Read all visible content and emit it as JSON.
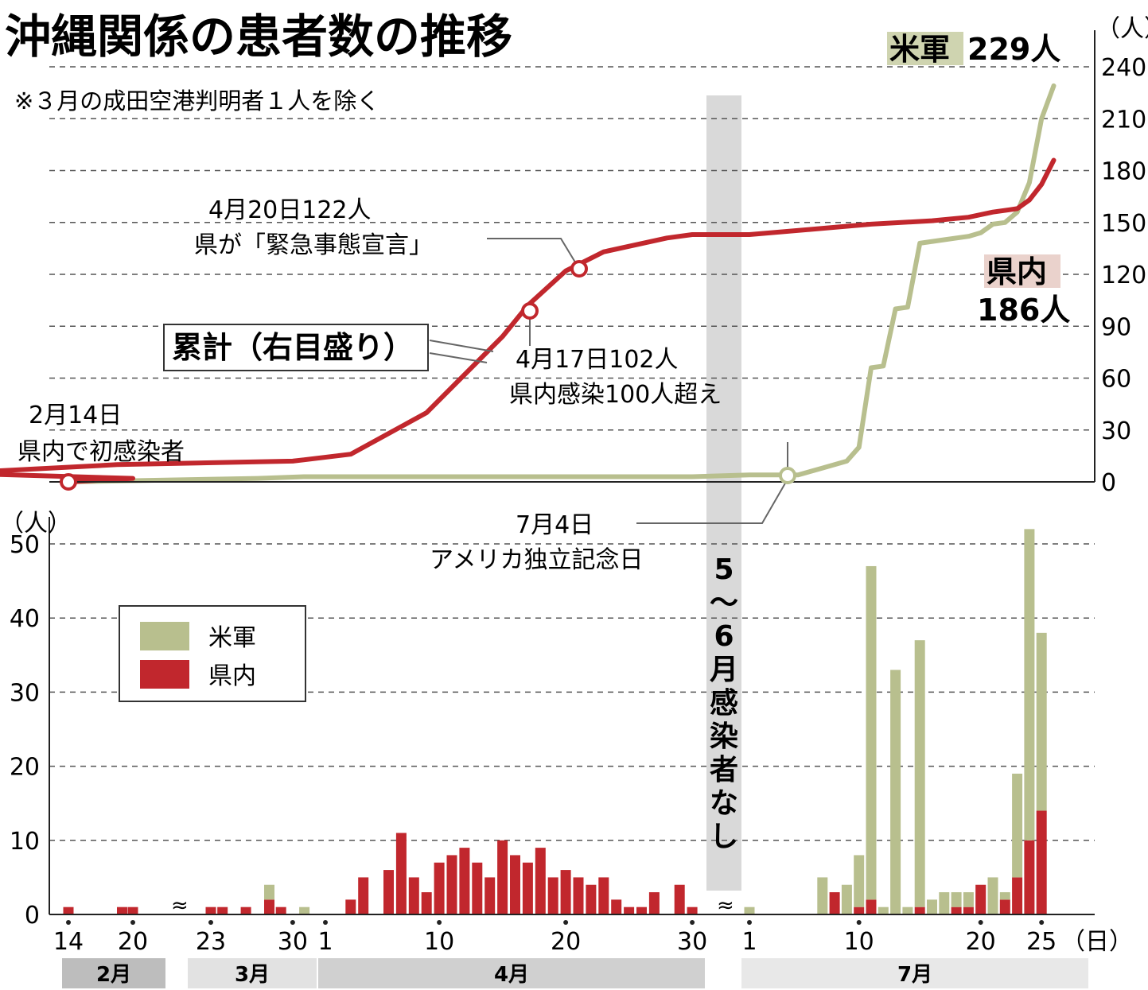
{
  "title": "沖縄関係の患者数の推移",
  "note": "※３月の成田空港判明者１人を除く",
  "colors": {
    "us_military": "#b8bf8e",
    "prefecture": "#c1272d",
    "gap_band": "#d9d9d9"
  },
  "gap_label": [
    "5",
    "〜",
    "6",
    "月",
    "感",
    "染",
    "者",
    "な",
    "し"
  ],
  "unit_person": "（人）",
  "unit_day": "（日）",
  "legend": {
    "us_military": "米軍",
    "prefecture": "県内"
  },
  "cumulative_box": "累計（右目盛り）",
  "end_labels": {
    "us_name": "米軍",
    "us_value": "229人",
    "pref_name": "県内",
    "pref_value": "186人"
  },
  "annotations": {
    "feb14_line1": "2月14日",
    "feb14_line2": "県内で初感染者",
    "apr17_line1": "4月17日102人",
    "apr17_line2": "県内感染100人超え",
    "apr20_line1": "4月20日122人",
    "apr20_line2": "県が「緊急事態宣言」",
    "jul4_line1": "7月4日",
    "jul4_line2": "アメリカ独立記念日"
  },
  "months": [
    "2月",
    "3月",
    "4月",
    "7月"
  ],
  "chart_data": [
    {
      "type": "line",
      "title": "",
      "ylabel": "（人）",
      "y_axis": "right",
      "ylim": [
        0,
        240
      ],
      "yticks": [
        0,
        30,
        60,
        90,
        120,
        150,
        180,
        210,
        240
      ],
      "grid": "dashed",
      "series": [
        {
          "name": "県内",
          "color": "#c1272d",
          "points": [
            [
              "2/14",
              0
            ],
            [
              "2/20",
              2
            ],
            [
              "3/1",
              5
            ],
            [
              "3/15",
              10
            ],
            [
              "3/30",
              12
            ],
            [
              "4/3",
              16
            ],
            [
              "4/6",
              28
            ],
            [
              "4/9",
              40
            ],
            [
              "4/12",
              62
            ],
            [
              "4/15",
              84
            ],
            [
              "4/17",
              102
            ],
            [
              "4/20",
              122
            ],
            [
              "4/23",
              133
            ],
            [
              "4/28",
              141
            ],
            [
              "4/30",
              143
            ],
            [
              "7/1",
              143
            ],
            [
              "7/6",
              146
            ],
            [
              "7/11",
              149
            ],
            [
              "7/16",
              151
            ],
            [
              "7/19",
              153
            ],
            [
              "7/21",
              156
            ],
            [
              "7/23",
              158
            ],
            [
              "7/24",
              163
            ],
            [
              "7/25",
              172
            ],
            [
              "7/26",
              186
            ]
          ]
        },
        {
          "name": "米軍",
          "color": "#b8bf8e",
          "points": [
            [
              "2/14",
              0
            ],
            [
              "3/27",
              2
            ],
            [
              "3/31",
              3
            ],
            [
              "4/30",
              3
            ],
            [
              "7/1",
              4
            ],
            [
              "7/5",
              4
            ],
            [
              "7/7",
              8
            ],
            [
              "7/9",
              12
            ],
            [
              "7/10",
              20
            ],
            [
              "7/11",
              66
            ],
            [
              "7/12",
              67
            ],
            [
              "7/13",
              100
            ],
            [
              "7/14",
              101
            ],
            [
              "7/15",
              138
            ],
            [
              "7/17",
              140
            ],
            [
              "7/19",
              142
            ],
            [
              "7/20",
              144
            ],
            [
              "7/21",
              149
            ],
            [
              "7/22",
              150
            ],
            [
              "7/23",
              156
            ],
            [
              "7/24",
              173
            ],
            [
              "7/25",
              210
            ],
            [
              "7/26",
              229
            ]
          ]
        }
      ]
    },
    {
      "type": "bar",
      "stacked": true,
      "title": "",
      "ylabel": "（人）",
      "xlabel": "（日）",
      "ylim": [
        0,
        50
      ],
      "yticks": [
        0,
        10,
        20,
        30,
        40,
        50
      ],
      "xtick_labels": [
        "14",
        "20",
        "23",
        "30",
        "1",
        "10",
        "20",
        "30",
        "1",
        "10",
        "20",
        "25"
      ],
      "x_axis_breaks": [
        "2月/3月",
        "4月/7月"
      ],
      "series_names": [
        "米軍",
        "県内"
      ],
      "bars": [
        {
          "date": "2/14",
          "us": 0,
          "pref": 1
        },
        {
          "date": "2/19",
          "us": 0,
          "pref": 1
        },
        {
          "date": "2/20",
          "us": 0,
          "pref": 1
        },
        {
          "date": "3/23",
          "us": 0,
          "pref": 1
        },
        {
          "date": "3/24",
          "us": 0,
          "pref": 1
        },
        {
          "date": "3/26",
          "us": 0,
          "pref": 1
        },
        {
          "date": "3/28",
          "us": 2,
          "pref": 2
        },
        {
          "date": "3/29",
          "us": 0,
          "pref": 1
        },
        {
          "date": "3/31",
          "us": 1,
          "pref": 0
        },
        {
          "date": "4/3",
          "us": 0,
          "pref": 2
        },
        {
          "date": "4/4",
          "us": 0,
          "pref": 5
        },
        {
          "date": "4/6",
          "us": 0,
          "pref": 6
        },
        {
          "date": "4/7",
          "us": 0,
          "pref": 11
        },
        {
          "date": "4/8",
          "us": 0,
          "pref": 5
        },
        {
          "date": "4/9",
          "us": 0,
          "pref": 3
        },
        {
          "date": "4/10",
          "us": 0,
          "pref": 7
        },
        {
          "date": "4/11",
          "us": 0,
          "pref": 8
        },
        {
          "date": "4/12",
          "us": 0,
          "pref": 9
        },
        {
          "date": "4/13",
          "us": 0,
          "pref": 7
        },
        {
          "date": "4/14",
          "us": 0,
          "pref": 5
        },
        {
          "date": "4/15",
          "us": 0,
          "pref": 10
        },
        {
          "date": "4/16",
          "us": 0,
          "pref": 8
        },
        {
          "date": "4/17",
          "us": 0,
          "pref": 7
        },
        {
          "date": "4/18",
          "us": 0,
          "pref": 9
        },
        {
          "date": "4/19",
          "us": 0,
          "pref": 5
        },
        {
          "date": "4/20",
          "us": 0,
          "pref": 6
        },
        {
          "date": "4/21",
          "us": 0,
          "pref": 5
        },
        {
          "date": "4/22",
          "us": 0,
          "pref": 4
        },
        {
          "date": "4/23",
          "us": 0,
          "pref": 5
        },
        {
          "date": "4/24",
          "us": 0,
          "pref": 2
        },
        {
          "date": "4/25",
          "us": 0,
          "pref": 1
        },
        {
          "date": "4/26",
          "us": 0,
          "pref": 1
        },
        {
          "date": "4/27",
          "us": 0,
          "pref": 3
        },
        {
          "date": "4/29",
          "us": 0,
          "pref": 4
        },
        {
          "date": "4/30",
          "us": 0,
          "pref": 1
        },
        {
          "date": "7/1",
          "us": 1,
          "pref": 0
        },
        {
          "date": "7/7",
          "us": 5,
          "pref": 0
        },
        {
          "date": "7/8",
          "us": 0,
          "pref": 3
        },
        {
          "date": "7/9",
          "us": 4,
          "pref": 0
        },
        {
          "date": "7/10",
          "us": 7,
          "pref": 1
        },
        {
          "date": "7/11",
          "us": 45,
          "pref": 2
        },
        {
          "date": "7/12",
          "us": 1,
          "pref": 0
        },
        {
          "date": "7/13",
          "us": 33,
          "pref": 0
        },
        {
          "date": "7/14",
          "us": 1,
          "pref": 0
        },
        {
          "date": "7/15",
          "us": 36,
          "pref": 1
        },
        {
          "date": "7/16",
          "us": 2,
          "pref": 0
        },
        {
          "date": "7/17",
          "us": 3,
          "pref": 0
        },
        {
          "date": "7/18",
          "us": 2,
          "pref": 1
        },
        {
          "date": "7/19",
          "us": 2,
          "pref": 1
        },
        {
          "date": "7/20",
          "us": 0,
          "pref": 4
        },
        {
          "date": "7/21",
          "us": 5,
          "pref": 0
        },
        {
          "date": "7/22",
          "us": 1,
          "pref": 2
        },
        {
          "date": "7/23",
          "us": 14,
          "pref": 5
        },
        {
          "date": "7/24",
          "us": 42,
          "pref": 10
        },
        {
          "date": "7/25",
          "us": 24,
          "pref": 14
        }
      ]
    }
  ]
}
